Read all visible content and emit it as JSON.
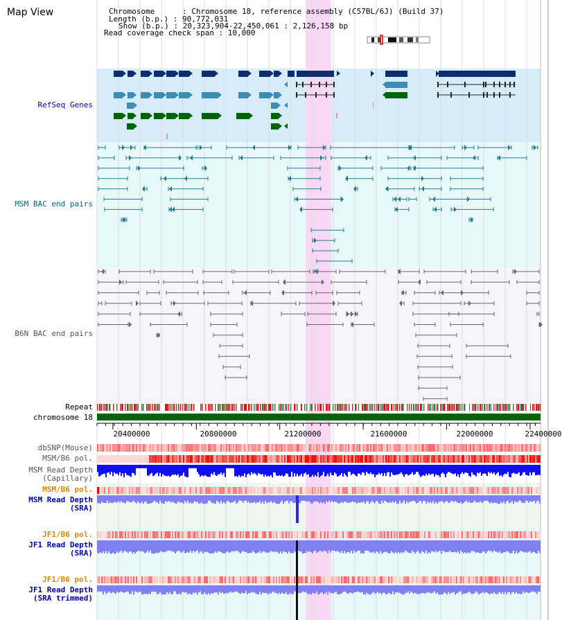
{
  "page": {
    "title": "Map View",
    "info_lines": [
      "Chromosome      : Chromosome 18, reference assembly (C57BL/6J) (Build 37)",
      "Length (b.p.) : 90,772,031",
      "Show (b.p.) : 20,323,904-22,450,061 : 2,126,158 bp",
      "Read coverage check span : 10,000"
    ]
  },
  "view": {
    "start": 20323904,
    "end": 22450061,
    "highlight": [
      21324000,
      21446000
    ]
  },
  "axis": {
    "ticks": [
      "20400000",
      "20800000",
      "21200000",
      "21600000",
      "22000000",
      "22400000"
    ],
    "tick_values": [
      20400000,
      20800000,
      21200000,
      21600000,
      22000000,
      22400000
    ]
  },
  "tracks": {
    "refseq": {
      "label": "RefSeq Genes",
      "color": "#0000aa"
    },
    "msm_bac": {
      "label": "MSM BAC end pairs",
      "color": "#006688"
    },
    "b6n_bac": {
      "label": "B6N BAC end pairs",
      "color": "#555555"
    },
    "repeat": {
      "label": "Repeat",
      "color": "#000000"
    },
    "chromosome": {
      "label": "chromosome 18",
      "color": "#000000"
    },
    "dbsnp": {
      "label": "dbSNP(Mouse)",
      "color": "#555555"
    },
    "msm_b6_pol": {
      "label": "MSM/B6 pol.",
      "color": "#555555"
    },
    "msm_depth_cap": {
      "label": "MSM Read Depth\n(Capillary)",
      "color": "#555555"
    },
    "msm_b6_pol2": {
      "label": "MSM/B6 pol.",
      "color": "#dd8800"
    },
    "msm_depth_sra": {
      "label": "MSM Read Depth\n(SRA)",
      "color": "#0000aa"
    },
    "jf1_b6_pol": {
      "label": "JF1/B6 pol.",
      "color": "#dd8800"
    },
    "jf1_depth_sra": {
      "label": "JF1 Read Depth\n(SRA)",
      "color": "#0000aa"
    },
    "jf1_b6_pol2": {
      "label": "JF1/B6 pol.",
      "color": "#dd8800"
    },
    "jf1_depth_trim": {
      "label": "JF1 Read Depth\n(SRA trimmed)",
      "color": "#0000aa"
    }
  },
  "colors": {
    "highlight": "#f8d8f4",
    "refseq_bg": "#d6ecf8",
    "msm_bg": "#e6f8f8",
    "b6n_bg": "#f6f6fa",
    "gene_dark": "#0b2e6e",
    "gene_mid": "#3c8cb4",
    "gene_green": "#006400",
    "msm_bac": "#2a7890",
    "b6n_bac": "#666666",
    "chromosome": "#006400",
    "depth_blue": "#1010ee",
    "depth_light": "#8080f0"
  }
}
